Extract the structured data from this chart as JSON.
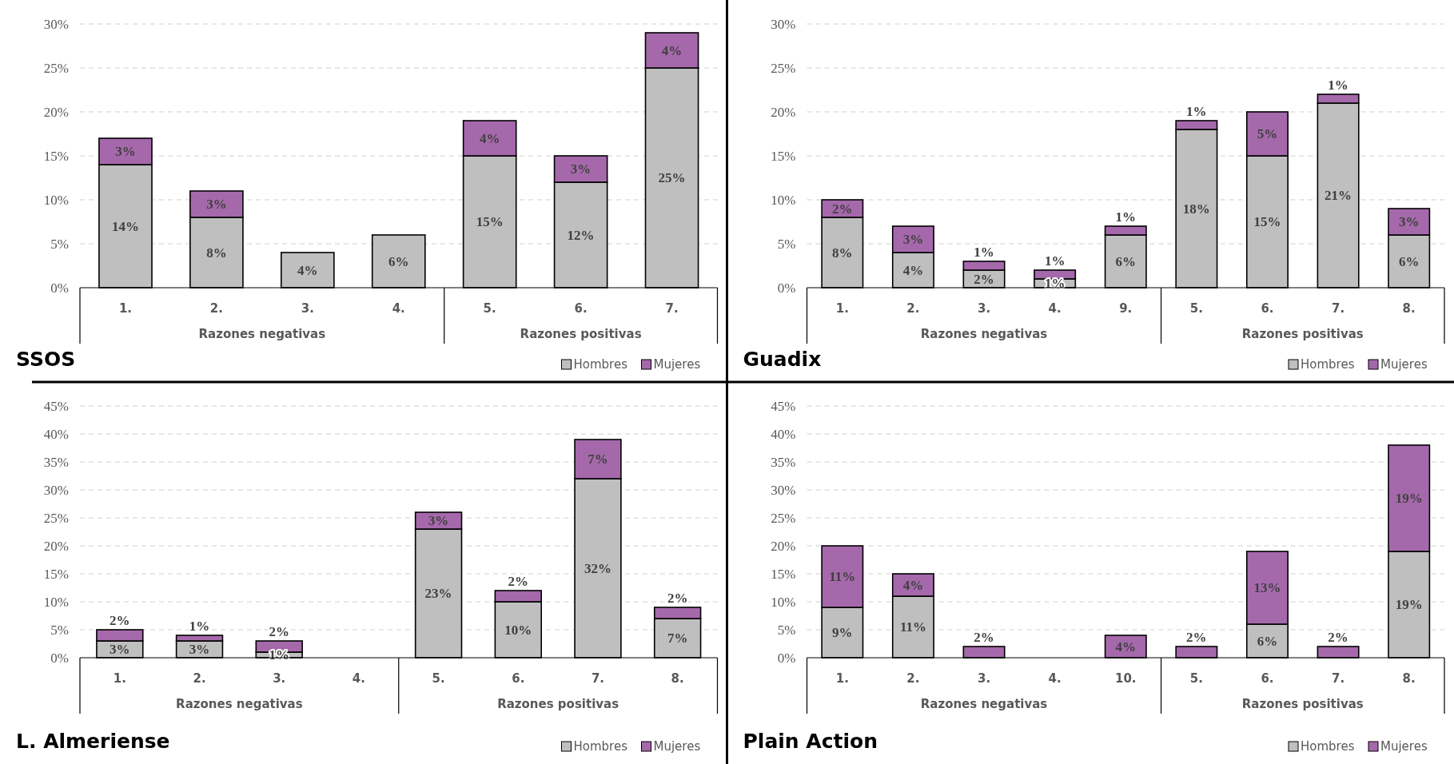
{
  "chart_data": [
    {
      "type": "bar",
      "title": "SSOS",
      "stacked": true,
      "data_labels": false,
      "legend": "bottom right",
      "grid": "y",
      "categories": [
        "1.",
        "2.",
        "3.",
        "4.",
        "5.",
        "6.",
        "7."
      ],
      "annotations": [
        "Razones negativas",
        "Razones positivas"
      ],
      "ylim": [
        0,
        30
      ],
      "yticks": [
        {
          "value": 0,
          "label": "0%"
        },
        {
          "value": 5,
          "label": "5%"
        },
        {
          "value": 10,
          "label": "10%"
        },
        {
          "value": 15,
          "label": "15%"
        },
        {
          "value": 20,
          "label": "20%"
        },
        {
          "value": 25,
          "label": "25%"
        },
        {
          "value": 30,
          "label": "30%"
        }
      ],
      "series": [
        {
          "name": "Hombres",
          "color": "#bfbfbf",
          "values": [
            14,
            8,
            4,
            6,
            15,
            12,
            25
          ],
          "value_labels": [
            "14%",
            "8%",
            "4%",
            "6%",
            "15%",
            "12%",
            "25%"
          ]
        },
        {
          "name": "Mujeres",
          "color": "#a569ab",
          "values": [
            3,
            3,
            null,
            null,
            4,
            3,
            4
          ],
          "value_labels": [
            "3%",
            "3%",
            null,
            null,
            "4%",
            "3%",
            "4%"
          ]
        }
      ]
    },
    {
      "type": "bar",
      "title": "Guadix",
      "stacked": true,
      "legend": "bottom right",
      "grid": "y",
      "categories": [
        "1.",
        "2.",
        "3.",
        "4.",
        "9.",
        "5.",
        "6.",
        "7.",
        "8."
      ],
      "annotations": [
        "Razones negativas",
        "Razones positivas"
      ],
      "ylim": [
        0,
        30
      ],
      "yticks": [
        {
          "value": 0,
          "label": "0%"
        },
        {
          "value": 5,
          "label": "5%"
        },
        {
          "value": 10,
          "label": "10%"
        },
        {
          "value": 15,
          "label": "15%"
        },
        {
          "value": 20,
          "label": "20%"
        },
        {
          "value": 25,
          "label": "25%"
        },
        {
          "value": 30,
          "label": "30%"
        }
      ],
      "series": [
        {
          "name": "Hombres",
          "color": "#bfbfbf",
          "values": [
            8,
            4,
            2,
            1,
            6,
            18,
            15,
            21,
            6
          ],
          "value_labels": [
            "8%",
            "4%",
            "2%",
            "1%",
            "6%",
            "18%",
            "15%",
            "21%",
            "6%"
          ]
        },
        {
          "name": "Mujeres",
          "color": "#a569ab",
          "values": [
            2,
            3,
            1,
            1,
            1,
            1,
            5,
            1,
            3
          ],
          "value_labels": [
            "2%",
            "3%",
            "1%",
            "1%",
            "1%",
            "1%",
            "5%",
            "1%",
            "3%"
          ]
        }
      ]
    },
    {
      "type": "bar",
      "title": "L. Almeriense",
      "stacked": true,
      "legend": "bottom right",
      "grid": "y",
      "categories": [
        "1.",
        "2.",
        "3.",
        "4.",
        "5.",
        "6.",
        "7.",
        "8."
      ],
      "annotations": [
        "Razones negativas",
        "Razones positivas"
      ],
      "ylim": [
        0,
        45
      ],
      "yticks": [
        {
          "value": 0,
          "label": "0%"
        },
        {
          "value": 5,
          "label": "5%"
        },
        {
          "value": 10,
          "label": "10%"
        },
        {
          "value": 15,
          "label": "15%"
        },
        {
          "value": 20,
          "label": "20%"
        },
        {
          "value": 25,
          "label": "25%"
        },
        {
          "value": 30,
          "label": "30%"
        },
        {
          "value": 35,
          "label": "35%"
        },
        {
          "value": 40,
          "label": "40%"
        },
        {
          "value": 45,
          "label": "45%"
        }
      ],
      "series": [
        {
          "name": "Hombres",
          "color": "#bfbfbf",
          "values": [
            3,
            3,
            1,
            null,
            23,
            10,
            32,
            7
          ],
          "value_labels": [
            "3%",
            "3%",
            "1%",
            null,
            "23%",
            "10%",
            "32%",
            "7%"
          ]
        },
        {
          "name": "Mujeres",
          "color": "#a569ab",
          "values": [
            2,
            1,
            2,
            null,
            3,
            2,
            7,
            2
          ],
          "value_labels": [
            "2%",
            "1%",
            "2%",
            null,
            "3%",
            "2%",
            "7%",
            "2%"
          ]
        }
      ]
    },
    {
      "type": "bar",
      "title": "Plain Action",
      "stacked": true,
      "legend": "bottom right",
      "grid": "y",
      "categories": [
        "1.",
        "2.",
        "3.",
        "4.",
        "10.",
        "5.",
        "6.",
        "7.",
        "8."
      ],
      "annotations": [
        "Razones negativas",
        "Razones positivas"
      ],
      "ylim": [
        0,
        45
      ],
      "yticks": [
        {
          "value": 0,
          "label": "0%"
        },
        {
          "value": 5,
          "label": "5%"
        },
        {
          "value": 10,
          "label": "10%"
        },
        {
          "value": 15,
          "label": "15%"
        },
        {
          "value": 20,
          "label": "20%"
        },
        {
          "value": 25,
          "label": "25%"
        },
        {
          "value": 30,
          "label": "30%"
        },
        {
          "value": 35,
          "label": "35%"
        },
        {
          "value": 40,
          "label": "40%"
        },
        {
          "value": 45,
          "label": "45%"
        }
      ],
      "series": [
        {
          "name": "Hombres",
          "color": "#bfbfbf",
          "values": [
            9,
            11,
            null,
            null,
            null,
            null,
            6,
            null,
            19
          ],
          "value_labels": [
            "9%",
            "11%",
            null,
            null,
            null,
            null,
            "6%",
            null,
            "19%"
          ]
        },
        {
          "name": "Mujeres",
          "color": "#a569ab",
          "values": [
            11,
            4,
            2,
            null,
            4,
            2,
            13,
            2,
            19
          ],
          "value_labels": [
            "11%",
            "4%",
            "2%",
            null,
            "4%",
            "2%",
            "13%",
            "2%",
            "19%"
          ]
        }
      ]
    }
  ]
}
